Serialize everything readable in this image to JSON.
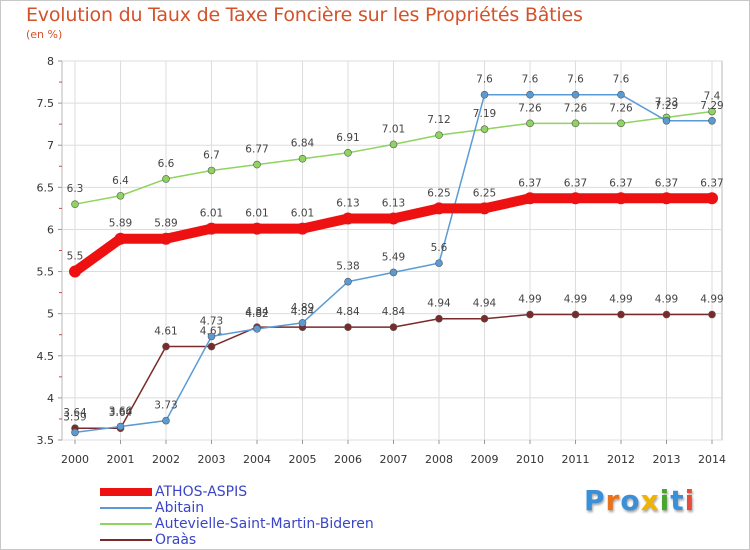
{
  "title": "Evolution du Taux de Taxe Foncière sur les Propriétés Bâties",
  "unit_label": "(en %)",
  "brand": {
    "letters": [
      "P",
      "r",
      "o",
      "x",
      "i",
      "t",
      "i"
    ],
    "colors": [
      "#3a8fd9",
      "#e8731c",
      "#3a8fd9",
      "#f0b400",
      "#4aa52e",
      "#3a8fd9",
      "#e84c3d"
    ]
  },
  "chart_data": {
    "type": "line",
    "x": [
      "2000",
      "2001",
      "2002",
      "2003",
      "2004",
      "2005",
      "2006",
      "2007",
      "2008",
      "2009",
      "2010",
      "2011",
      "2012",
      "2013",
      "2014"
    ],
    "ylim": [
      3.5,
      8
    ],
    "yticks": [
      "3.5",
      "4",
      "4.5",
      "5",
      "5.5",
      "6",
      "6.5",
      "7",
      "7.5",
      "8"
    ],
    "grid": true,
    "series": [
      {
        "name": "Oraàs",
        "color": "#7b2a2a",
        "values": [
          3.64,
          3.64,
          4.61,
          4.61,
          4.84,
          4.84,
          4.84,
          4.84,
          4.94,
          4.94,
          4.99,
          4.99,
          4.99,
          4.99,
          4.99
        ],
        "labels": [
          "3.64",
          "3.64",
          "4.61",
          "4.61",
          "4.84",
          "4.84",
          "4.84",
          "4.84",
          "4.94",
          "4.94",
          "4.99",
          "4.99",
          "4.99",
          "4.99",
          "4.99"
        ]
      },
      {
        "name": "Autevielle-Saint-Martin-Bideren",
        "color": "#8ed45e",
        "values": [
          6.3,
          6.4,
          6.6,
          6.7,
          6.77,
          6.84,
          6.91,
          7.01,
          7.12,
          7.19,
          7.26,
          7.26,
          7.26,
          7.33,
          7.4
        ],
        "labels": [
          "6.3",
          "6.4",
          "6.6",
          "6.7",
          "6.77",
          "6.84",
          "6.91",
          "7.01",
          "7.12",
          "7.19",
          "7.26",
          "7.26",
          "7.26",
          "7.33",
          "7.4"
        ]
      },
      {
        "name": "Abitain",
        "color": "#5b9bd5",
        "values": [
          3.59,
          3.66,
          3.73,
          4.73,
          4.82,
          4.89,
          5.38,
          5.49,
          5.6,
          7.6,
          7.6,
          7.6,
          7.6,
          7.29,
          7.29
        ],
        "labels": [
          "3.59",
          "3.66",
          "3.73",
          "4.73",
          "4.82",
          "4.89",
          "5.38",
          "5.49",
          "5.6",
          "7.6",
          "7.6",
          "7.6",
          "7.6",
          "7.29",
          "7.29"
        ]
      },
      {
        "name": "ATHOS-ASPIS",
        "color": "#ee1111",
        "values": [
          5.5,
          5.89,
          5.89,
          6.01,
          6.01,
          6.01,
          6.13,
          6.13,
          6.25,
          6.25,
          6.37,
          6.37,
          6.37,
          6.37,
          6.37
        ],
        "labels": [
          "5.5",
          "5.89",
          "5.89",
          "6.01",
          "6.01",
          "6.01",
          "6.13",
          "6.13",
          "6.25",
          "6.25",
          "6.37",
          "6.37",
          "6.37",
          "6.37",
          "6.37"
        ]
      }
    ],
    "legend": [
      "ATHOS-ASPIS",
      "Abitain",
      "Autevielle-Saint-Martin-Bideren",
      "Oraàs"
    ],
    "legend_colors": [
      "#ee1111",
      "#5b9bd5",
      "#8ed45e",
      "#7b2a2a"
    ],
    "legend_position": "bottom-left"
  }
}
